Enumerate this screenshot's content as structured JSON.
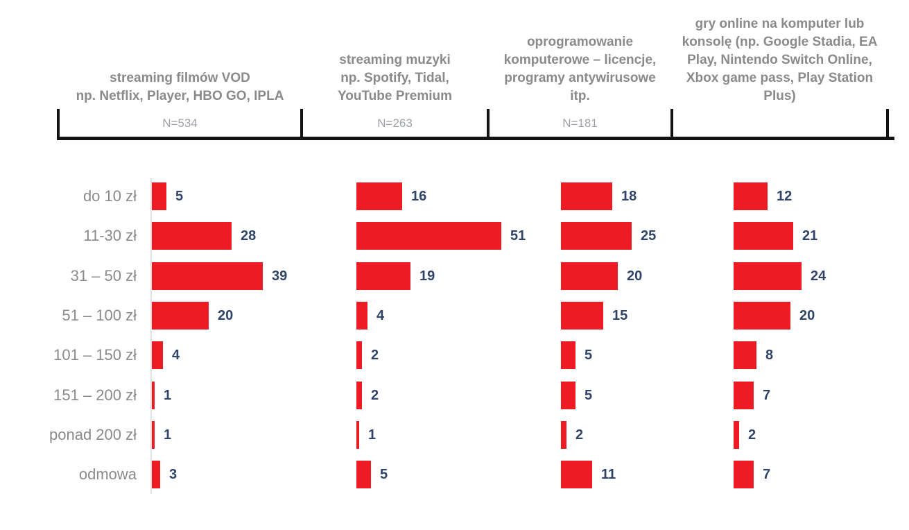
{
  "colors": {
    "bar": "#ED1C24",
    "value_text": "#2F4468",
    "category_text": "#8A8A8A",
    "header_text": "#8A8A8A",
    "n_text": "#9EA2A8",
    "bracket": "#131313",
    "axis_line": "#E2E2E2"
  },
  "chart_data": {
    "type": "bar",
    "orientation": "horizontal",
    "title": "",
    "value_labels": true,
    "grid": false,
    "legend": false,
    "xlim": [
      0,
      55
    ],
    "bar_color": "#ED1C24",
    "categories": [
      "do 10 zł",
      "11-30 zł",
      "31 – 50 zł",
      "51 – 100 zł",
      "101 – 150 zł",
      "151 – 200 zł",
      "ponad 200 zł",
      "odmowa"
    ],
    "series": [
      {
        "name": "streaming filmów VOD\nnp. Netflix, Player, HBO GO, IPLA",
        "n_label": "N=534",
        "values": [
          5,
          28,
          39,
          20,
          4,
          1,
          1,
          3
        ]
      },
      {
        "name": "streaming muzyki\nnp. Spotify, Tidal,\nYouTube Premium",
        "n_label": "N=263",
        "values": [
          16,
          51,
          19,
          4,
          2,
          2,
          1,
          5
        ]
      },
      {
        "name": "oprogramowanie\nkomputerowe – licencje,\nprogramy antywirusowe\nitp.",
        "n_label": "N=181",
        "values": [
          18,
          25,
          20,
          15,
          5,
          5,
          2,
          11
        ]
      },
      {
        "name": "gry online na komputer lub\nkonsolę (np. Google Stadia, EA\nPlay, Nintendo Switch Online,\nXbox game pass, Play Station\nPlus)",
        "n_label": "",
        "values": [
          12,
          21,
          24,
          20,
          8,
          7,
          2,
          7
        ]
      }
    ]
  }
}
